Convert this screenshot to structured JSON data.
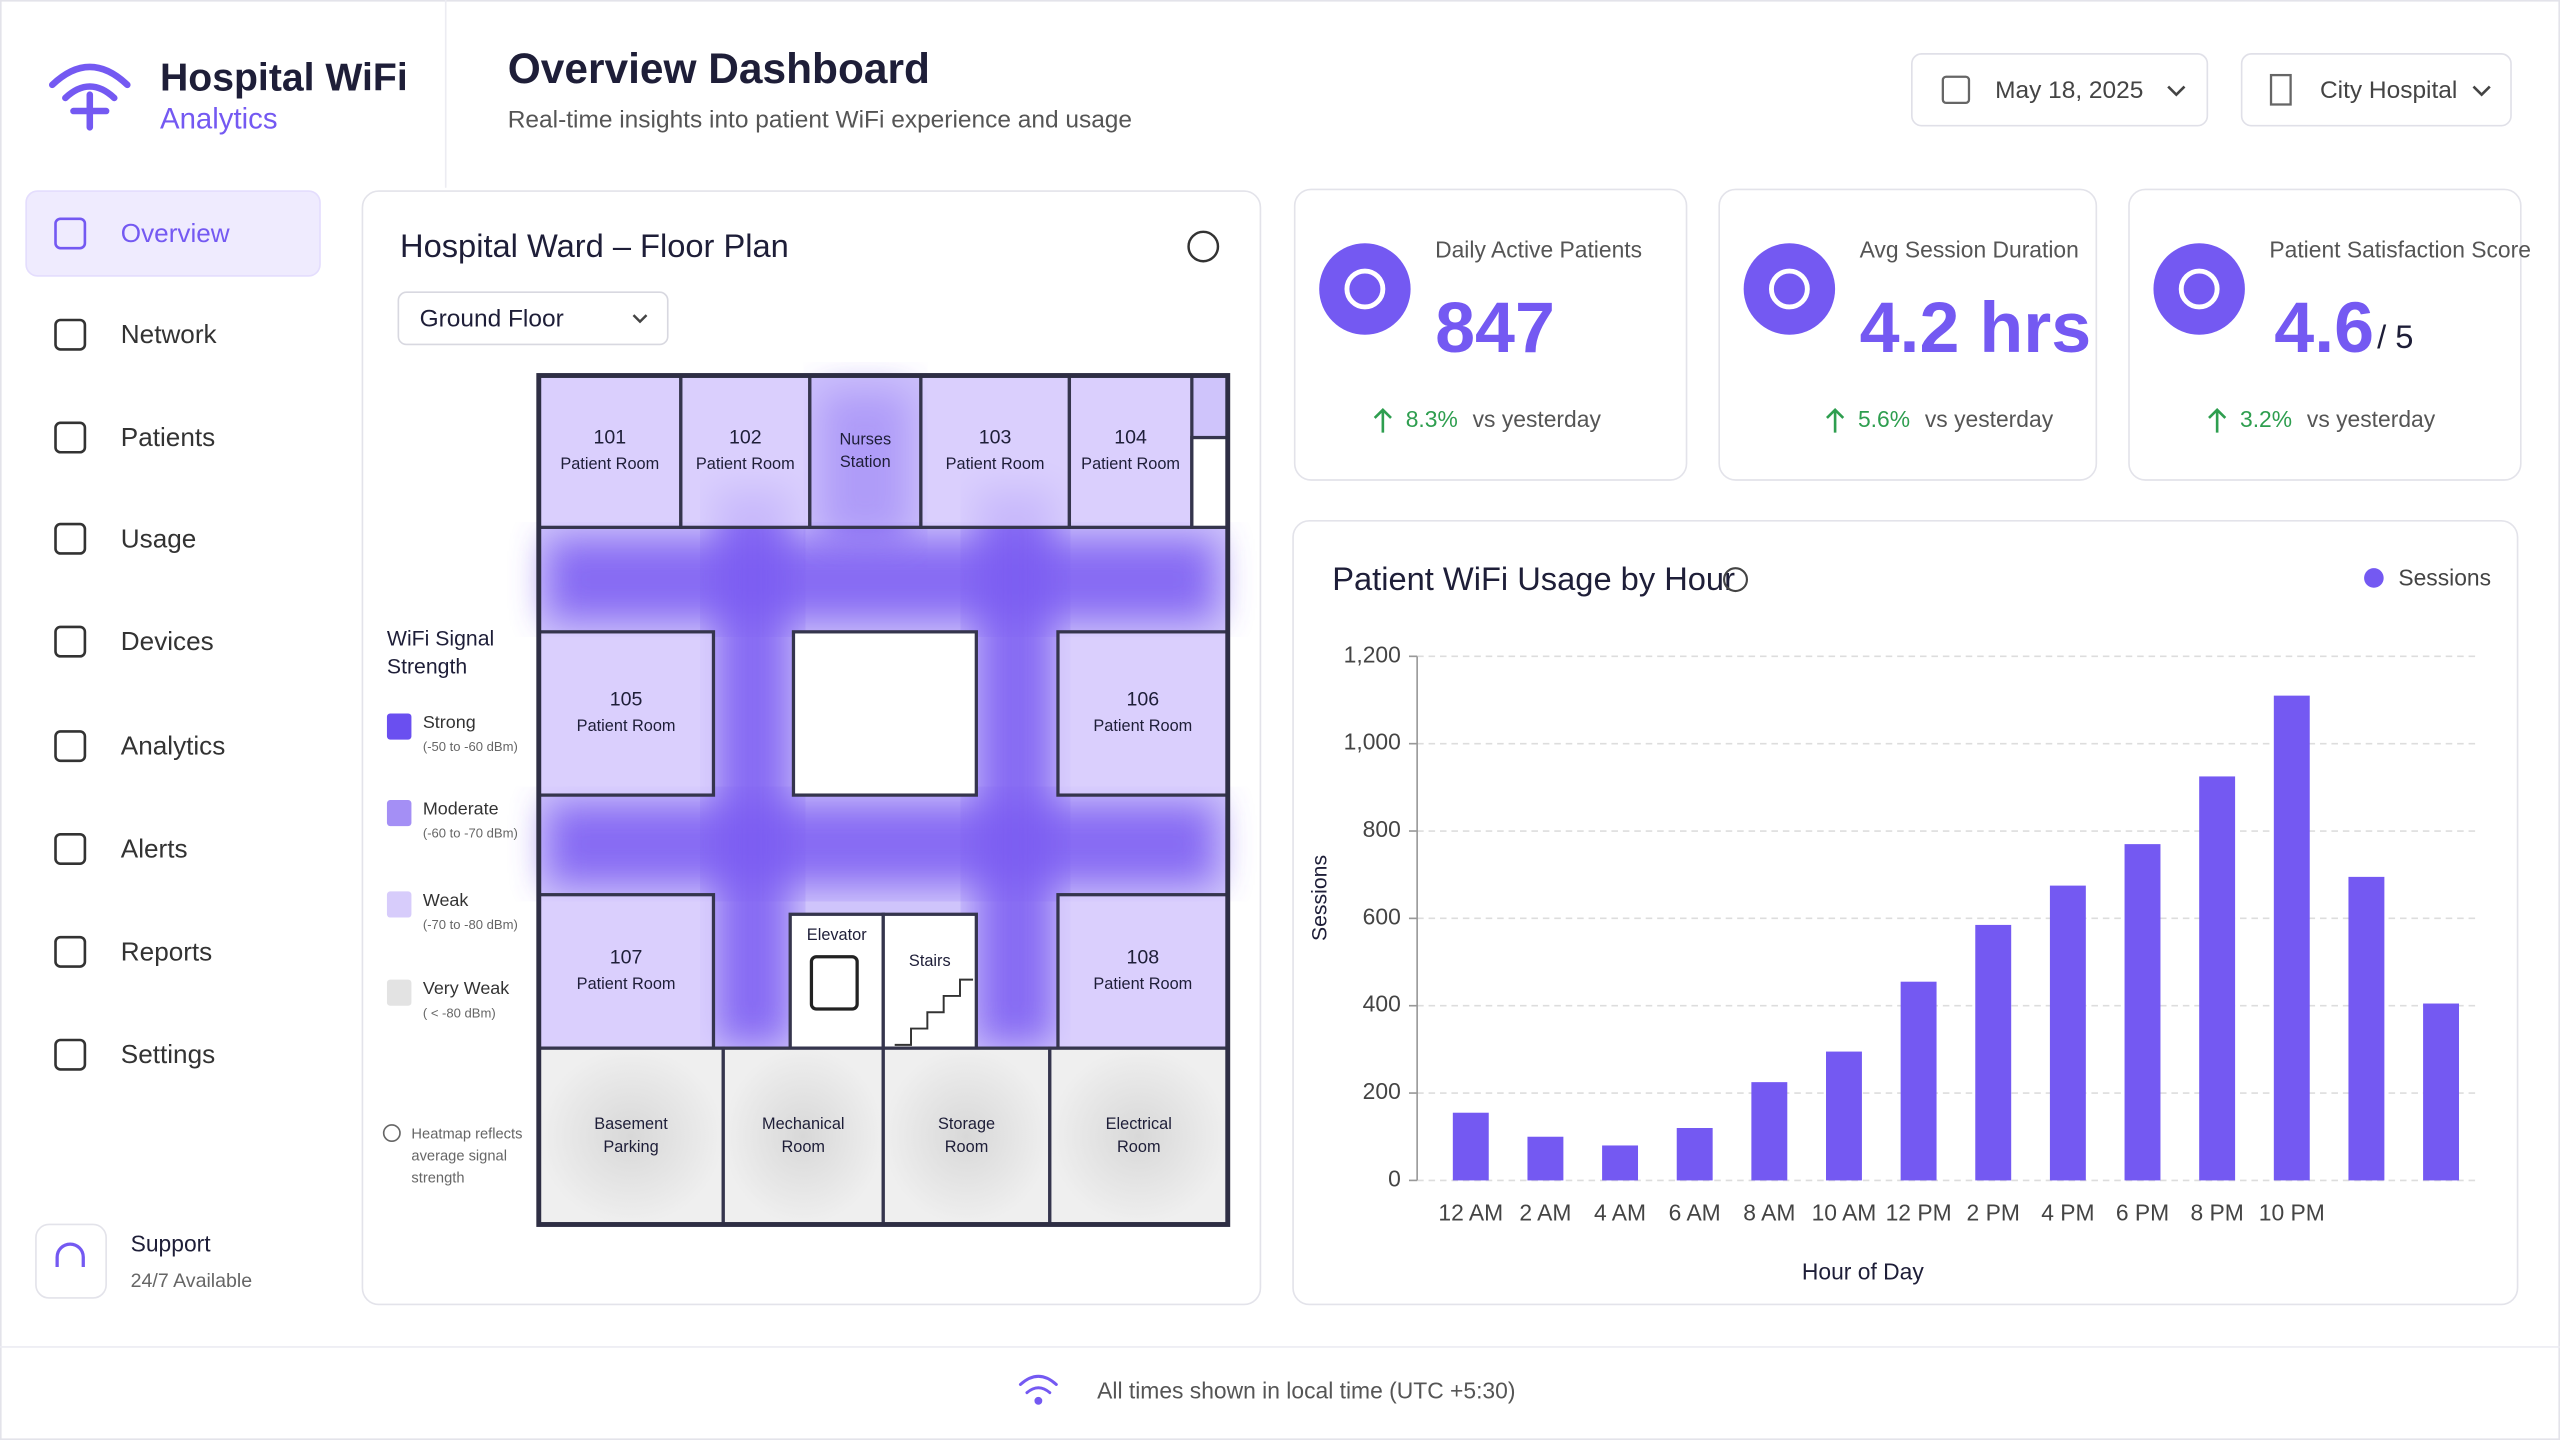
{
  "brand": {
    "name": "Hospital WiFi",
    "sub": "Analytics"
  },
  "header": {
    "title": "Overview Dashboard",
    "subtitle": "Real-time insights into patient WiFi experience and usage",
    "date": "May 18, 2025",
    "location": "City Hospital"
  },
  "nav": [
    "Overview",
    "Network",
    "Patients",
    "Usage",
    "Devices",
    "Analytics",
    "Alerts",
    "Reports",
    "Settings"
  ],
  "support": {
    "title": "Support",
    "sub": "24/7 Available"
  },
  "floor_plan": {
    "title": "Hospital Ward – Floor Plan",
    "floor": "Ground Floor",
    "legend_title": [
      "WiFi Signal",
      "Strength"
    ],
    "legend": [
      {
        "name": "Strong",
        "range": "(-50 to -60 dBm)"
      },
      {
        "name": "Moderate",
        "range": "(-60 to -70 dBm)"
      },
      {
        "name": "Weak",
        "range": "(-70 to -80 dBm)"
      },
      {
        "name": "Very Weak",
        "range": "( < -80 dBm)"
      }
    ],
    "note": [
      "Heatmap reflects",
      "average signal",
      "strength"
    ],
    "rooms": [
      {
        "number": "101",
        "label": "Patient Room"
      },
      {
        "number": "102",
        "label": "Patient Room"
      },
      {
        "number": "103",
        "label": "Patient Room"
      },
      {
        "number": "104",
        "label": "Patient Room"
      },
      {
        "number": "105",
        "label": "Patient Room"
      },
      {
        "number": "106",
        "label": "Patient Room"
      },
      {
        "number": "107",
        "label": "Patient Room"
      },
      {
        "number": "108",
        "label": "Patient Room"
      }
    ],
    "areas": [
      [
        "Nurses",
        "Station"
      ],
      [
        "Elevator"
      ],
      [
        "Stairs"
      ],
      [
        "Basement",
        "Parking"
      ],
      [
        "Mechanical",
        "Room"
      ],
      [
        "Storage",
        "Room"
      ],
      [
        "Electrical",
        "Room"
      ]
    ]
  },
  "kpis": [
    {
      "label": "Daily Active Patients",
      "value": "847",
      "change": "8.3%",
      "compare": "vs yesterday"
    },
    {
      "label": "Avg Session Duration",
      "value": "4.2 hrs",
      "change": "5.6%",
      "compare": "vs yesterday"
    },
    {
      "label": "Patient Satisfaction Score",
      "value": "4.6",
      "suffix": "/ 5",
      "change": "3.2%",
      "compare": "vs yesterday"
    }
  ],
  "chart_data": {
    "type": "bar",
    "title": "Patient WiFi Usage by Hour",
    "x_label": "Hour of Day",
    "y_label": "Sessions",
    "categories": [
      "12 AM",
      "2 AM",
      "4 AM",
      "6 AM",
      "8 AM",
      "10 AM",
      "12 PM",
      "2 PM",
      "4 PM",
      "6 PM",
      "8 PM",
      "10 PM",
      null,
      null
    ],
    "series": [
      {
        "name": "Sessions",
        "color": "#7459f2",
        "values": [
          155,
          100,
          80,
          120,
          225,
          295,
          455,
          585,
          675,
          770,
          925,
          1110,
          695,
          405
        ]
      }
    ],
    "ylim": [
      0,
      1200
    ],
    "yticks": [
      0,
      200,
      400,
      600,
      800,
      {
        "value": 1000,
        "label": "1,000"
      },
      {
        "value": 1200,
        "label": "1,200"
      }
    ],
    "grid": true
  },
  "footer": "All times shown in local time (UTC +5:30)"
}
